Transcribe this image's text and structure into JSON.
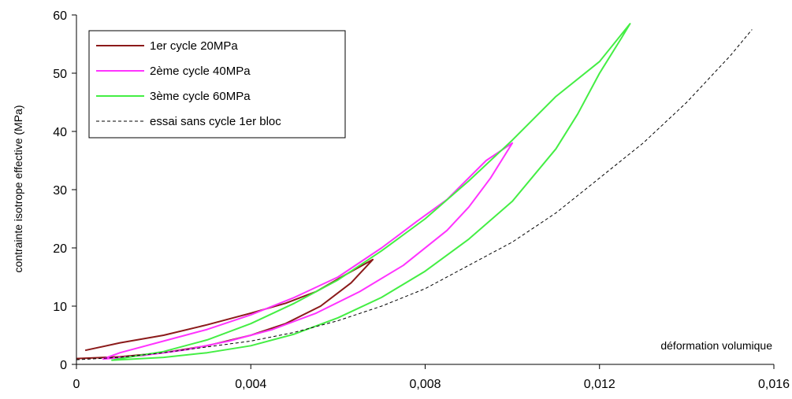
{
  "chart_data": {
    "type": "line",
    "title": "",
    "xlabel": "déformation volumique",
    "ylabel": "contrainte isotrope effective (MPa)",
    "xlim": [
      0,
      0.016
    ],
    "ylim": [
      0,
      60
    ],
    "x_ticks": [
      0,
      0.004,
      0.008,
      0.012,
      0.016
    ],
    "x_tick_labels": [
      "0",
      "0,004",
      "0,008",
      "0,012",
      "0,016"
    ],
    "y_ticks": [
      0,
      10,
      20,
      30,
      40,
      50,
      60
    ],
    "y_tick_labels": [
      "0",
      "10",
      "20",
      "30",
      "40",
      "50",
      "60"
    ],
    "grid": false,
    "legend_position": "top-left",
    "series": [
      {
        "name": "1er cycle 20MPa",
        "color": "#8b1a1a",
        "style": "solid",
        "points": [
          [
            0,
            1
          ],
          [
            0.001,
            1.3
          ],
          [
            0.002,
            2
          ],
          [
            0.003,
            3.2
          ],
          [
            0.004,
            5
          ],
          [
            0.0048,
            7
          ],
          [
            0.0056,
            10
          ],
          [
            0.0063,
            14
          ],
          [
            0.0068,
            18
          ],
          [
            0.0062,
            15.5
          ],
          [
            0.0055,
            12.5
          ],
          [
            0.0048,
            10.5
          ],
          [
            0.004,
            8.8
          ],
          [
            0.003,
            6.8
          ],
          [
            0.002,
            5
          ],
          [
            0.001,
            3.7
          ],
          [
            0.0002,
            2.4
          ]
        ]
      },
      {
        "name": "2ème cycle 40MPa",
        "color": "#ff33ff",
        "style": "solid",
        "points": [
          [
            0.0006,
            0.9
          ],
          [
            0.0015,
            1.5
          ],
          [
            0.0025,
            2.5
          ],
          [
            0.0035,
            4
          ],
          [
            0.0045,
            6
          ],
          [
            0.0055,
            8.8
          ],
          [
            0.0065,
            12.5
          ],
          [
            0.0075,
            17
          ],
          [
            0.0085,
            23
          ],
          [
            0.009,
            27
          ],
          [
            0.0095,
            32
          ],
          [
            0.01,
            38
          ],
          [
            0.0094,
            35
          ],
          [
            0.0085,
            28.3
          ],
          [
            0.0078,
            24.5
          ],
          [
            0.007,
            20
          ],
          [
            0.006,
            15
          ],
          [
            0.005,
            11.5
          ],
          [
            0.004,
            8.5
          ],
          [
            0.003,
            6
          ],
          [
            0.002,
            4
          ],
          [
            0.001,
            2
          ],
          [
            0.0006,
            0.9
          ]
        ]
      },
      {
        "name": "3ème cycle 60MPa",
        "color": "#44ee44",
        "style": "solid",
        "points": [
          [
            0.0008,
            0.7
          ],
          [
            0.002,
            1.2
          ],
          [
            0.003,
            2
          ],
          [
            0.004,
            3.2
          ],
          [
            0.005,
            5.2
          ],
          [
            0.006,
            8
          ],
          [
            0.007,
            11.5
          ],
          [
            0.008,
            16
          ],
          [
            0.009,
            21.5
          ],
          [
            0.01,
            28
          ],
          [
            0.011,
            37
          ],
          [
            0.0115,
            43
          ],
          [
            0.012,
            50
          ],
          [
            0.0125,
            56
          ],
          [
            0.0127,
            58.5
          ],
          [
            0.012,
            52
          ],
          [
            0.011,
            46
          ],
          [
            0.01,
            38.5
          ],
          [
            0.009,
            31.5
          ],
          [
            0.008,
            25
          ],
          [
            0.007,
            19.5
          ],
          [
            0.006,
            14.5
          ],
          [
            0.005,
            10.5
          ],
          [
            0.004,
            7
          ],
          [
            0.003,
            4.2
          ],
          [
            0.002,
            2.2
          ],
          [
            0.001,
            1
          ],
          [
            0.0008,
            0.7
          ]
        ]
      },
      {
        "name": "essai sans cycle 1er bloc",
        "color": "#000000",
        "style": "dashed",
        "points": [
          [
            0,
            0.8
          ],
          [
            0.001,
            1.2
          ],
          [
            0.002,
            2
          ],
          [
            0.003,
            3
          ],
          [
            0.004,
            4
          ],
          [
            0.005,
            5.5
          ],
          [
            0.006,
            7.5
          ],
          [
            0.007,
            10
          ],
          [
            0.008,
            13
          ],
          [
            0.009,
            17
          ],
          [
            0.01,
            21
          ],
          [
            0.011,
            26
          ],
          [
            0.012,
            32
          ],
          [
            0.013,
            38
          ],
          [
            0.014,
            45
          ],
          [
            0.015,
            53
          ],
          [
            0.0155,
            57.5
          ]
        ]
      }
    ]
  }
}
